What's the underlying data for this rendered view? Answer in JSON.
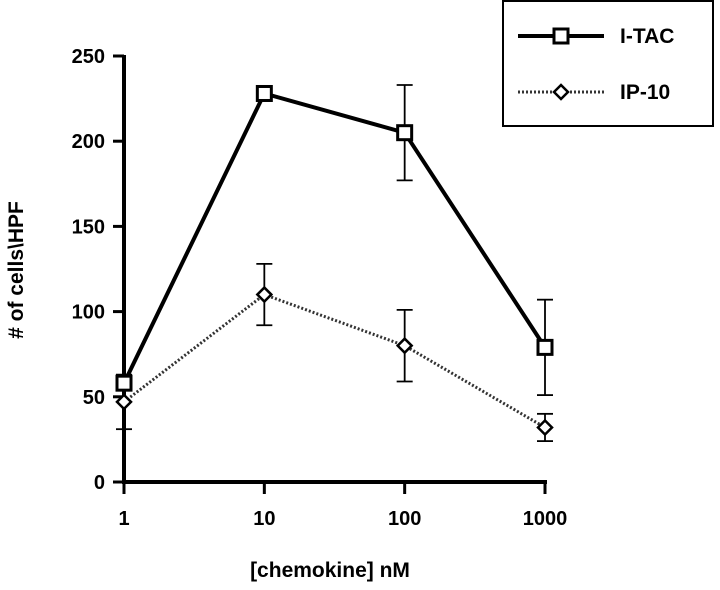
{
  "chart_data": {
    "type": "line",
    "x": [
      1,
      10,
      100,
      1000
    ],
    "x_tick_labels": [
      "1",
      "10",
      "100",
      "1000"
    ],
    "x_scale": "log",
    "xlabel": "[chemokine] nM",
    "ylabel": "# of cells\\HPF",
    "ylim": [
      0,
      250
    ],
    "y_ticks": [
      0,
      50,
      100,
      150,
      200,
      250
    ],
    "y_tick_labels": [
      "0",
      "50",
      "100",
      "150",
      "200",
      "250"
    ],
    "grid": false,
    "legend_position": "top-right",
    "series": [
      {
        "name": "I-TAC",
        "marker": "square",
        "line_style": "solid",
        "color": "#000000",
        "values": [
          58,
          228,
          205,
          79
        ],
        "error": [
          null,
          null,
          28,
          28
        ]
      },
      {
        "name": "IP-10",
        "marker": "diamond",
        "line_style": "dotted",
        "color": "#000000",
        "values": [
          47,
          110,
          80,
          32
        ],
        "error": [
          16,
          18,
          21,
          8
        ]
      }
    ]
  }
}
